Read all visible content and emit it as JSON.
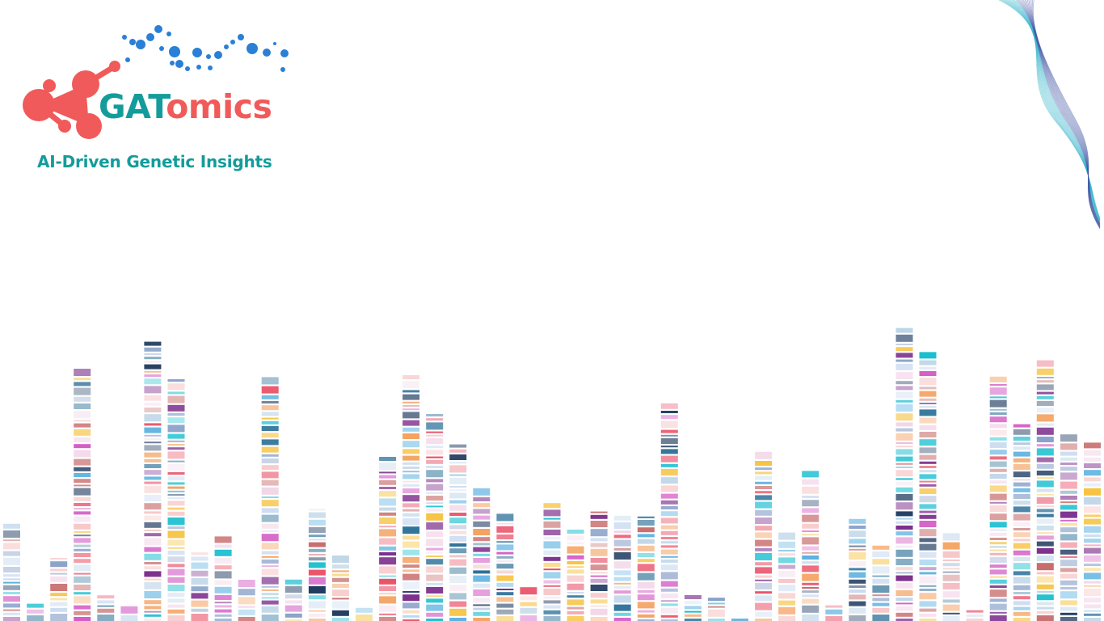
{
  "logo": {
    "brand_part1": "GAT",
    "brand_part2": "omics",
    "tagline": "AI-Driven Genetic Insights",
    "colors": {
      "teal": "#139c9b",
      "coral": "#f15a5a",
      "blue_dots": "#2a7fd6"
    }
  },
  "decor": {
    "wave_icon": "wave-lines-icon",
    "dna_icon": "dna-sequencing-bars-icon",
    "bar_palette": [
      "#e8475f",
      "#d35cc4",
      "#2a6f97",
      "#f4a261",
      "#88a0c8",
      "#f7c6c7",
      "#c7d9f0",
      "#1e3a5f",
      "#7b2d8b",
      "#f2d6e8",
      "#17becf",
      "#f6c343",
      "#bcd4e6",
      "#c86b6b",
      "#5ab0e0"
    ]
  }
}
